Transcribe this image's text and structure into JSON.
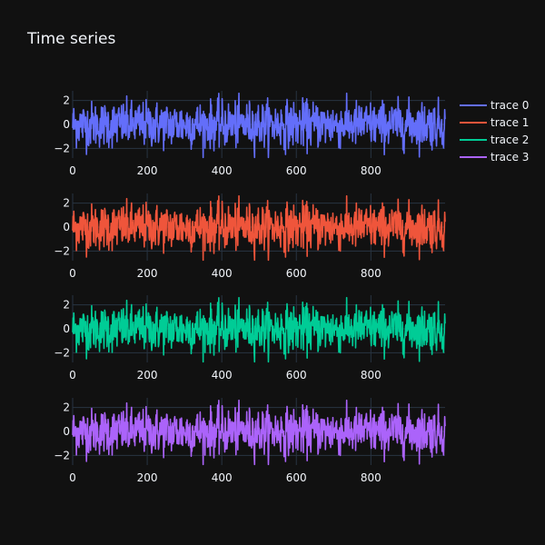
{
  "chart_data": {
    "type": "line",
    "title": "Time series",
    "background_color": "#111111",
    "grid": true,
    "grid_color": "#283442",
    "legend_placement": "top-right",
    "subplots": 4,
    "shared_y_range": [
      -2.8,
      2.8
    ],
    "x_range": [
      0,
      999
    ],
    "x_tick_values": [
      0,
      200,
      400,
      600,
      800
    ],
    "x_tick_labels": [
      "0",
      "200",
      "400",
      "600",
      "800"
    ],
    "y_tick_values": [
      -2,
      0,
      2
    ],
    "y_tick_labels": [
      "−2",
      "0",
      "2"
    ],
    "n_points": 1000,
    "series": [
      {
        "name": "trace 0",
        "color": "#636efa"
      },
      {
        "name": "trace 1",
        "color": "#EF553B"
      },
      {
        "name": "trace 2",
        "color": "#00cc96"
      },
      {
        "name": "trace 3",
        "color": "#ab63fa"
      }
    ]
  }
}
